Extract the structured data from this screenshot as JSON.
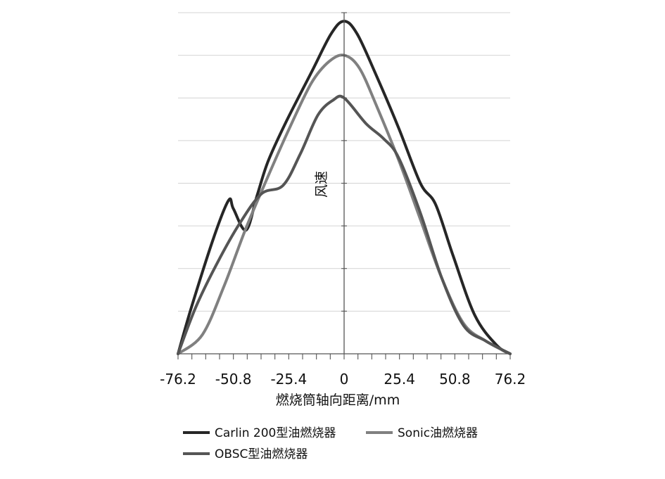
{
  "chart_data": {
    "type": "line",
    "xlabel": "燃烧筒轴向距离/mm",
    "ylabel": "风速",
    "xlim": [
      -76.2,
      76.2
    ],
    "ylim": [
      0,
      8
    ],
    "x_ticks": [
      "-76.2",
      "-50.8",
      "-25.4",
      "0",
      "25.4",
      "50.8",
      "76.2"
    ],
    "grid": "horizontal",
    "legend_position": "bottom",
    "series": [
      {
        "name": "Carlin 200型油燃烧器",
        "color": "#262626",
        "points": [
          [
            -76.2,
            0
          ],
          [
            -70,
            1.1
          ],
          [
            -60,
            2.7
          ],
          [
            -53,
            3.6
          ],
          [
            -50.8,
            3.4
          ],
          [
            -45,
            2.9
          ],
          [
            -40,
            3.7
          ],
          [
            -35,
            4.5
          ],
          [
            -27,
            5.4
          ],
          [
            -15,
            6.6
          ],
          [
            -6,
            7.5
          ],
          [
            0,
            7.8
          ],
          [
            6,
            7.5
          ],
          [
            15,
            6.5
          ],
          [
            25,
            5.3
          ],
          [
            35,
            4
          ],
          [
            42,
            3.5
          ],
          [
            50,
            2.3
          ],
          [
            60,
            0.9
          ],
          [
            70,
            0.2
          ],
          [
            76.2,
            0
          ]
        ]
      },
      {
        "name": "Sonic油燃烧器",
        "color": "#808080",
        "points": [
          [
            -76.2,
            0
          ],
          [
            -65,
            0.45
          ],
          [
            -55,
            1.6
          ],
          [
            -45,
            2.95
          ],
          [
            -35,
            4.15
          ],
          [
            -25,
            5.3
          ],
          [
            -15,
            6.35
          ],
          [
            -7,
            6.85
          ],
          [
            0,
            7
          ],
          [
            7,
            6.7
          ],
          [
            15,
            5.8
          ],
          [
            25,
            4.55
          ],
          [
            35,
            3.15
          ],
          [
            45,
            1.75
          ],
          [
            55,
            0.7
          ],
          [
            65,
            0.3
          ],
          [
            76.2,
            0
          ]
        ]
      },
      {
        "name": "OBSC型油燃烧器",
        "color": "#555555",
        "points": [
          [
            -76.2,
            0
          ],
          [
            -68,
            1.1
          ],
          [
            -58,
            2.15
          ],
          [
            -48,
            3.05
          ],
          [
            -38,
            3.75
          ],
          [
            -28,
            3.95
          ],
          [
            -20,
            4.7
          ],
          [
            -12,
            5.6
          ],
          [
            -5,
            5.95
          ],
          [
            0,
            6
          ],
          [
            10,
            5.4
          ],
          [
            18,
            5.05
          ],
          [
            25,
            4.6
          ],
          [
            35,
            3.3
          ],
          [
            45,
            1.75
          ],
          [
            55,
            0.65
          ],
          [
            65,
            0.3
          ],
          [
            76.2,
            0
          ]
        ]
      }
    ]
  }
}
